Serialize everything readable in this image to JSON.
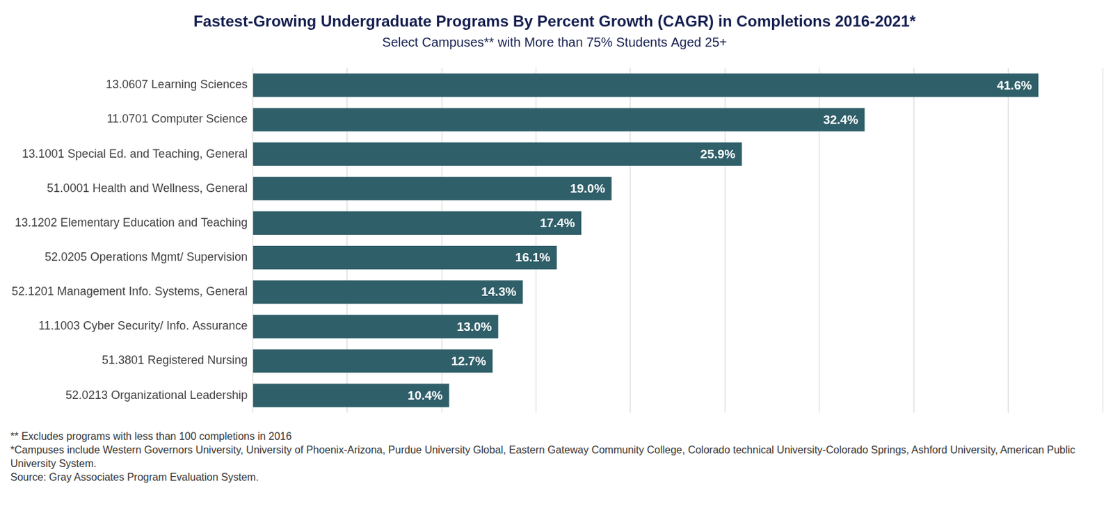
{
  "chart_data": {
    "type": "bar",
    "orientation": "horizontal",
    "title": "Fastest-Growing Undergraduate Programs By Percent Growth (CAGR) in Completions 2016-2021*",
    "subtitle": "Select Campuses** with More than 75% Students Aged 25+",
    "categories": [
      "13.0607 Learning Sciences",
      "11.0701 Computer Science",
      "13.1001 Special Ed. and Teaching, General",
      "51.0001 Health and Wellness, General",
      "13.1202 Elementary Education and Teaching",
      "52.0205 Operations Mgmt/ Supervision",
      "52.1201 Management Info. Systems, General",
      "11.1003 Cyber Security/ Info. Assurance",
      "51.3801 Registered Nursing",
      "52.0213 Organizational Leadership"
    ],
    "values": [
      41.6,
      32.4,
      25.9,
      19.0,
      17.4,
      16.1,
      14.3,
      13.0,
      12.7,
      10.4
    ],
    "value_labels": [
      "41.6%",
      "32.4%",
      "25.9%",
      "19.0%",
      "17.4%",
      "16.1%",
      "14.3%",
      "13.0%",
      "12.7%",
      "10.4%"
    ],
    "color": "#2f5f69",
    "xlim": [
      0,
      45
    ],
    "xticks": [
      0,
      5,
      10,
      15,
      20,
      25,
      30,
      35,
      40,
      45
    ],
    "grid": true,
    "data_labels": true,
    "tick_labels": "y",
    "notes": [
      "** Excludes programs with less than 100 completions in 2016",
      "*Campuses include Western Governors University, University of Phoenix-Arizona, Purdue University Global, Eastern Gateway Community College, Colorado technical University-Colorado Springs, Ashford University, American Public University System.",
      "Source: Gray Associates Program Evaluation System."
    ]
  }
}
